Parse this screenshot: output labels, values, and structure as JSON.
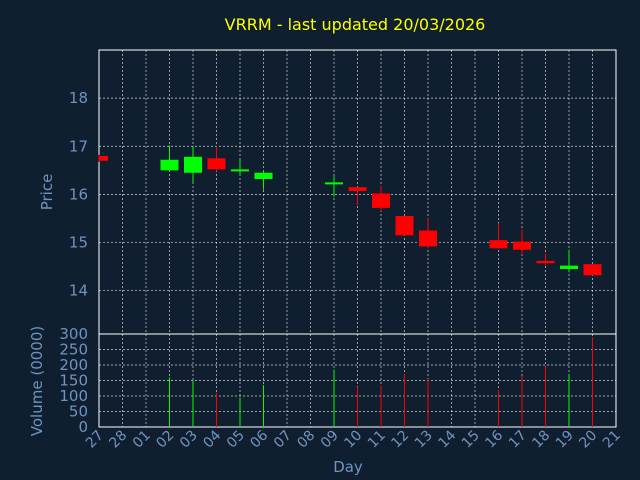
{
  "chart_data": {
    "type": "candlestick",
    "title": "VRRM - last updated 20/03/2026",
    "xlabel": "Day",
    "colors": {
      "up": "#00ff00",
      "down": "#ff0000",
      "axis_text": "#6f94c0",
      "title": "#ffff00",
      "background": "#0f1f30",
      "grid": "#ffffff"
    },
    "x_ticks": [
      "27",
      "28",
      "01",
      "02",
      "03",
      "04",
      "05",
      "06",
      "07",
      "08",
      "09",
      "10",
      "11",
      "12",
      "13",
      "14",
      "15",
      "16",
      "17",
      "18",
      "19",
      "20",
      "21"
    ],
    "price": {
      "ylabel": "Price",
      "ylim": [
        13.1,
        19.0
      ],
      "y_ticks": [
        14,
        15,
        16,
        17,
        18
      ],
      "y_tick_labels": [
        "14",
        "15",
        "16",
        "17",
        "18"
      ],
      "grid": true
    },
    "volume": {
      "ylabel": "Volume (0000)",
      "ylim": [
        0,
        300
      ],
      "y_ticks": [
        0,
        50,
        100,
        150,
        200,
        250,
        300
      ],
      "y_tick_labels": [
        "0",
        "50",
        "100",
        "150",
        "200",
        "250",
        "300"
      ],
      "grid": true
    },
    "candles": [
      {
        "day": "27",
        "open": 16.8,
        "high": 16.82,
        "low": 16.68,
        "close": 16.7,
        "volume": 0
      },
      {
        "day": "02",
        "open": 16.5,
        "high": 17.02,
        "low": 16.48,
        "close": 16.72,
        "volume": 160
      },
      {
        "day": "03",
        "open": 16.45,
        "high": 17.0,
        "low": 16.25,
        "close": 16.78,
        "volume": 150
      },
      {
        "day": "04",
        "open": 16.75,
        "high": 17.0,
        "low": 16.48,
        "close": 16.52,
        "volume": 110
      },
      {
        "day": "05",
        "open": 16.49,
        "high": 16.72,
        "low": 16.4,
        "close": 16.52,
        "volume": 95
      },
      {
        "day": "06",
        "open": 16.32,
        "high": 16.5,
        "low": 16.1,
        "close": 16.45,
        "volume": 135
      },
      {
        "day": "09",
        "open": 16.21,
        "high": 16.38,
        "low": 15.95,
        "close": 16.25,
        "volume": 185
      },
      {
        "day": "10",
        "open": 16.15,
        "high": 16.15,
        "low": 15.78,
        "close": 16.07,
        "volume": 130
      },
      {
        "day": "11",
        "open": 16.02,
        "high": 16.18,
        "low": 15.65,
        "close": 15.72,
        "volume": 135
      },
      {
        "day": "12",
        "open": 15.55,
        "high": 15.55,
        "low": 15.15,
        "close": 15.15,
        "volume": 170
      },
      {
        "day": "13",
        "open": 15.25,
        "high": 15.5,
        "low": 14.88,
        "close": 14.92,
        "volume": 155
      },
      {
        "day": "16",
        "open": 15.05,
        "high": 15.4,
        "low": 14.88,
        "close": 14.88,
        "volume": 120
      },
      {
        "day": "17",
        "open": 15.02,
        "high": 15.28,
        "low": 14.75,
        "close": 14.85,
        "volume": 165
      },
      {
        "day": "18",
        "open": 14.62,
        "high": 14.78,
        "low": 14.52,
        "close": 14.57,
        "volume": 195
      },
      {
        "day": "19",
        "open": 14.45,
        "high": 14.85,
        "low": 14.38,
        "close": 14.52,
        "volume": 170
      },
      {
        "day": "20",
        "open": 14.55,
        "high": 14.55,
        "low": 14.32,
        "close": 14.32,
        "volume": 290
      }
    ]
  }
}
